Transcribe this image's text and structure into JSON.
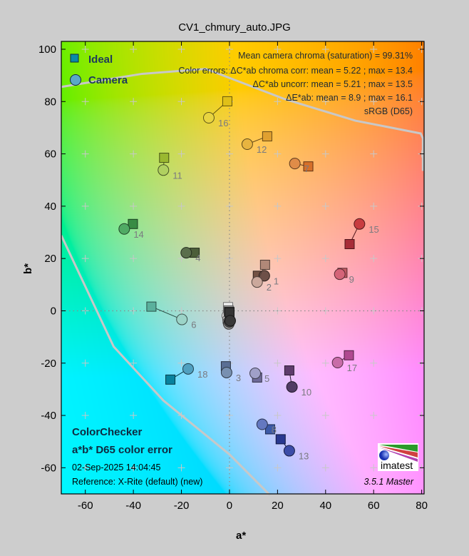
{
  "title": "CV1_chmury_auto.JPG",
  "legend": {
    "ideal": "Ideal",
    "camera": "Camera"
  },
  "info": {
    "line1": "Mean camera chroma (saturation) = 99.31%",
    "line2": "Color errors: ΔC*ab chroma corr:  mean = 5.22 ;  max = 13.4",
    "line3": "ΔC*ab uncorr:  mean = 5.21 ;  max = 13.5",
    "line4": "ΔE*ab:  mean = 8.9 ;  max = 16.1",
    "line5": "sRGB (D65)"
  },
  "footer": {
    "chart_name": "ColorChecker",
    "subtitle": "a*b* D65 color error",
    "datetime": "02-Sep-2025 14:04:45",
    "reference": "Reference: X-Rite (default) (new)",
    "version": "3.5.1  Master",
    "logo_text": "imatest"
  },
  "colors": {
    "ideal_legend": "#0a8aa8",
    "camera_legend": "#5aa8c8",
    "gamut_line": "#c8c8c8",
    "grid_mark": "#c8c8c8",
    "label": "#7a7a80"
  },
  "chart_data": {
    "type": "scatter",
    "xlabel": "a*",
    "ylabel": "b*",
    "xlim": [
      -70,
      81
    ],
    "ylim": [
      -70,
      103
    ],
    "xticks": [
      -60,
      -40,
      -20,
      0,
      20,
      40,
      60,
      80
    ],
    "yticks": [
      -60,
      -40,
      -20,
      0,
      20,
      40,
      60,
      80,
      100
    ],
    "grid": true,
    "legend_position": "top-left",
    "gamut_boundary": [
      [
        [
          -70,
          85.6
        ],
        [
          -36.4,
          90.6
        ],
        [
          -9.8,
          92.5
        ],
        [
          22.8,
          81
        ],
        [
          52.4,
          72.7
        ],
        [
          79.6,
          67.8
        ],
        [
          80.5,
          65.9
        ],
        [
          80.5,
          53.5
        ]
      ],
      [
        [
          -70,
          28.8
        ],
        [
          -48.2,
          -13.7
        ],
        [
          -27.5,
          -34.3
        ],
        [
          0,
          -54.9
        ],
        [
          16.9,
          -70.5
        ]
      ]
    ],
    "patches": [
      {
        "id": "1",
        "ideal": [
          11.8,
          13.4
        ],
        "camera": [
          14.5,
          13.4
        ],
        "ideal_color": "#735244",
        "camera_color": "#6e5048"
      },
      {
        "id": "2",
        "ideal": [
          14.8,
          17.6
        ],
        "camera": [
          11.5,
          11.0
        ],
        "ideal_color": "#b08878",
        "camera_color": "#cba89c"
      },
      {
        "id": "3",
        "ideal": [
          -1.5,
          -21.2
        ],
        "camera": [
          -1.2,
          -23.6
        ],
        "ideal_color": "#5a6e94",
        "camera_color": "#7890b0"
      },
      {
        "id": "4",
        "ideal": [
          -14.5,
          22.2
        ],
        "camera": [
          -18.0,
          22.2
        ],
        "ideal_color": "#4c5e3a",
        "camera_color": "#5a6e4c"
      },
      {
        "id": "5",
        "ideal": [
          11.5,
          -25.5
        ],
        "camera": [
          10.7,
          -23.9
        ],
        "ideal_color": "#6e6a98",
        "camera_color": "#a0a0c8"
      },
      {
        "id": "6",
        "ideal": [
          -32.5,
          1.6
        ],
        "camera": [
          -19.8,
          -3.3
        ],
        "ideal_color": "#5ab09c",
        "camera_color": "#9cd4c8"
      },
      {
        "id": "7",
        "ideal": [
          32.8,
          55.2
        ],
        "camera": [
          27.2,
          56.3
        ],
        "ideal_color": "#d6702a",
        "camera_color": "#e08c48"
      },
      {
        "id": "8",
        "ideal": [
          16.9,
          -45.3
        ],
        "camera": [
          13.6,
          -43.4
        ],
        "ideal_color": "#3c5aa8",
        "camera_color": "#6478c0"
      },
      {
        "id": "9",
        "ideal": [
          47.0,
          14.5
        ],
        "camera": [
          45.9,
          14.0
        ],
        "ideal_color": "#c15a63",
        "camera_color": "#d46478"
      },
      {
        "id": "10",
        "ideal": [
          24.9,
          -22.8
        ],
        "camera": [
          26.0,
          -29.1
        ],
        "ideal_color": "#5e3c6c",
        "camera_color": "#503c64"
      },
      {
        "id": "11",
        "ideal": [
          -27.2,
          58.5
        ],
        "camera": [
          -27.5,
          53.8
        ],
        "ideal_color": "#9ab830",
        "camera_color": "#b0d060"
      },
      {
        "id": "12",
        "ideal": [
          15.7,
          66.7
        ],
        "camera": [
          7.4,
          63.7
        ],
        "ideal_color": "#e0a030",
        "camera_color": "#e8b440"
      },
      {
        "id": "13",
        "ideal": [
          21.3,
          -49.1
        ],
        "camera": [
          24.9,
          -53.5
        ],
        "ideal_color": "#283890",
        "camera_color": "#3c4ca8"
      },
      {
        "id": "14",
        "ideal": [
          -40.2,
          33.2
        ],
        "camera": [
          -43.8,
          31.3
        ],
        "ideal_color": "#388c44",
        "camera_color": "#50aa64"
      },
      {
        "id": "15",
        "ideal": [
          50.0,
          25.5
        ],
        "camera": [
          54.1,
          33.2
        ],
        "ideal_color": "#a82c38",
        "camera_color": "#c83c40"
      },
      {
        "id": "16",
        "ideal": [
          -0.9,
          80.1
        ],
        "camera": [
          -8.6,
          73.8
        ],
        "ideal_color": "#e0c018",
        "camera_color": "#e8d440"
      },
      {
        "id": "17",
        "ideal": [
          49.7,
          -17.0
        ],
        "camera": [
          45.0,
          -19.8
        ],
        "ideal_color": "#b04890",
        "camera_color": "#c86ca8"
      },
      {
        "id": "18",
        "ideal": [
          -24.6,
          -26.3
        ],
        "camera": [
          -17.2,
          -22.2
        ],
        "ideal_color": "#08829e",
        "camera_color": "#50a0c0"
      },
      {
        "id": "19",
        "ideal": [
          -0.6,
          1.4
        ],
        "camera": [
          -0.9,
          -1.9
        ],
        "ideal_color": "#f4f4f4",
        "camera_color": "#f0f0f0"
      },
      {
        "id": "20",
        "ideal": [
          -0.4,
          0.2
        ],
        "camera": [
          -0.6,
          -3.3
        ],
        "ideal_color": "#c8c8c8",
        "camera_color": "#d4d4d4"
      },
      {
        "id": "21",
        "ideal": [
          -0.2,
          -0.3
        ],
        "camera": [
          -0.5,
          -4.3
        ],
        "ideal_color": "#a0a0a0",
        "camera_color": "#b4b4b4"
      },
      {
        "id": "22",
        "ideal": [
          0.0,
          -0.5
        ],
        "camera": [
          -0.3,
          -5.0
        ],
        "ideal_color": "#7a7a7a",
        "camera_color": "#909090"
      },
      {
        "id": "23",
        "ideal": [
          0.0,
          -0.5
        ],
        "camera": [
          0.0,
          -4.2
        ],
        "ideal_color": "#555555",
        "camera_color": "#606060"
      },
      {
        "id": "24",
        "ideal": [
          0.0,
          -0.6
        ],
        "camera": [
          0.3,
          -3.8
        ],
        "ideal_color": "#343434",
        "camera_color": "#383838"
      }
    ]
  }
}
